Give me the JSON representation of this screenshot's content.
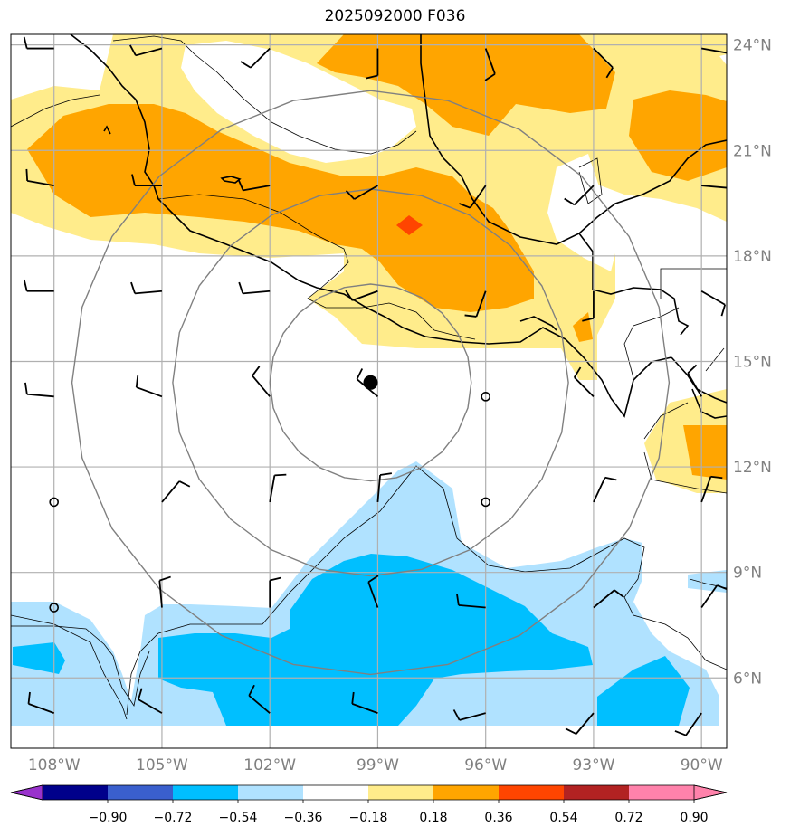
{
  "title": "2025092000 F036",
  "map": {
    "lon_range": [
      -109.2,
      -89.3
    ],
    "lat_range": [
      4.0,
      24.3
    ],
    "lat_ticks": [
      {
        "value": 24,
        "label": "24°N"
      },
      {
        "value": 21,
        "label": "21°N"
      },
      {
        "value": 18,
        "label": "18°N"
      },
      {
        "value": 15,
        "label": "15°N"
      },
      {
        "value": 12,
        "label": "12°N"
      },
      {
        "value": 9,
        "label": "9°N"
      },
      {
        "value": 6,
        "label": "6°N"
      }
    ],
    "lon_ticks": [
      {
        "value": -108,
        "label": "108°W"
      },
      {
        "value": -105,
        "label": "105°W"
      },
      {
        "value": -102,
        "label": "102°W"
      },
      {
        "value": -99,
        "label": "99°W"
      },
      {
        "value": -96,
        "label": "96°W"
      },
      {
        "value": -93,
        "label": "93°W"
      },
      {
        "value": -90,
        "label": "90°W"
      }
    ],
    "storm_center": {
      "lon": -99.2,
      "lat": 14.4
    },
    "range_rings_deg": [
      2.8,
      5.5,
      8.3
    ]
  },
  "colorbar": {
    "colors": [
      "#9932cc",
      "#00008b",
      "#3a5fcd",
      "#00bfff",
      "#b0e2ff",
      "#ffffff",
      "#ffec8b",
      "#ffa500",
      "#ff4500",
      "#b22222",
      "#ff82ab",
      "#ff82ab"
    ],
    "labels": [
      "−0.90",
      "−0.72",
      "−0.54",
      "−0.36",
      "−0.18",
      "0.18",
      "0.36",
      "0.54",
      "0.72",
      "0.90"
    ]
  },
  "barbs": [
    {
      "lon": -108,
      "lat": 23.9,
      "type": "barb",
      "dir": 270,
      "flags": 1
    },
    {
      "lon": -105,
      "lat": 23.9,
      "type": "barb",
      "dir": 255,
      "flags": 1
    },
    {
      "lon": -102,
      "lat": 23.9,
      "type": "barb",
      "dir": 225,
      "flags": 1
    },
    {
      "lon": -99,
      "lat": 23.9,
      "type": "barb",
      "dir": 180,
      "flags": 1
    },
    {
      "lon": -96,
      "lat": 23.9,
      "type": "barb",
      "dir": 160,
      "flags": 1
    },
    {
      "lon": -93,
      "lat": 23.9,
      "type": "barb",
      "dir": 135,
      "flags": 1
    },
    {
      "lon": -90,
      "lat": 23.9,
      "type": "barb",
      "dir": 100,
      "flags": 1
    },
    {
      "lon": -108,
      "lat": 20.0,
      "type": "barb",
      "dir": 280,
      "flags": 1
    },
    {
      "lon": -105,
      "lat": 20.0,
      "type": "barb",
      "dir": 270,
      "flags": 1
    },
    {
      "lon": -102,
      "lat": 20.0,
      "type": "barb",
      "dir": 260,
      "flags": 1
    },
    {
      "lon": -99,
      "lat": 20.0,
      "type": "barb",
      "dir": 240,
      "flags": 1
    },
    {
      "lon": -96,
      "lat": 20.0,
      "type": "barb",
      "dir": 215,
      "flags": 1
    },
    {
      "lon": -93,
      "lat": 20.0,
      "type": "barb",
      "dir": 225,
      "flags": 1
    },
    {
      "lon": -90,
      "lat": 20.0,
      "type": "barb",
      "dir": 95,
      "flags": 1
    },
    {
      "lon": -108,
      "lat": 17.0,
      "type": "barb",
      "dir": 270,
      "flags": 1
    },
    {
      "lon": -105,
      "lat": 17.0,
      "type": "barb",
      "dir": 265,
      "flags": 1
    },
    {
      "lon": -102,
      "lat": 17.0,
      "type": "barb",
      "dir": 265,
      "flags": 1
    },
    {
      "lon": -99,
      "lat": 17.0,
      "type": "barb",
      "dir": 250,
      "flags": 1
    },
    {
      "lon": -96,
      "lat": 17.0,
      "type": "barb",
      "dir": 200,
      "flags": 1
    },
    {
      "lon": -93,
      "lat": 17.0,
      "type": "barb",
      "dir": 180,
      "flags": 1
    },
    {
      "lon": -90,
      "lat": 17.0,
      "type": "barb",
      "dir": 120,
      "flags": 1
    },
    {
      "lon": -108,
      "lat": 14.0,
      "type": "barb",
      "dir": 275,
      "flags": 1
    },
    {
      "lon": -105,
      "lat": 14.0,
      "type": "barb",
      "dir": 290,
      "flags": 1
    },
    {
      "lon": -102,
      "lat": 14.0,
      "type": "barb",
      "dir": 320,
      "flags": 1
    },
    {
      "lon": -99,
      "lat": 14.0,
      "type": "barb",
      "dir": 310,
      "flags": 1
    },
    {
      "lon": -96,
      "lat": 14.0,
      "type": "calm"
    },
    {
      "lon": -93,
      "lat": 14.0,
      "type": "barb",
      "dir": 315,
      "flags": 1
    },
    {
      "lon": -90,
      "lat": 14.0,
      "type": "barb",
      "dir": 330,
      "flags": 1
    },
    {
      "lon": -108,
      "lat": 11.0,
      "type": "calm"
    },
    {
      "lon": -105,
      "lat": 11.0,
      "type": "barb",
      "dir": 40,
      "flags": 1
    },
    {
      "lon": -102,
      "lat": 11.0,
      "type": "barb",
      "dir": 10,
      "flags": 1
    },
    {
      "lon": -99,
      "lat": 11.0,
      "type": "barb",
      "dir": 5,
      "flags": 1
    },
    {
      "lon": -96,
      "lat": 11.0,
      "type": "calm"
    },
    {
      "lon": -93,
      "lat": 11.0,
      "type": "barb",
      "dir": 25,
      "flags": 1
    },
    {
      "lon": -90,
      "lat": 11.0,
      "type": "barb",
      "dir": 20,
      "flags": 1
    },
    {
      "lon": -108,
      "lat": 8.0,
      "type": "calm"
    },
    {
      "lon": -105,
      "lat": 8.0,
      "type": "barb",
      "dir": 355,
      "flags": 1
    },
    {
      "lon": -102,
      "lat": 8.0,
      "type": "barb",
      "dir": 0,
      "flags": 1
    },
    {
      "lon": -99,
      "lat": 8.0,
      "type": "barb",
      "dir": 340,
      "flags": 1
    },
    {
      "lon": -96,
      "lat": 8.0,
      "type": "barb",
      "dir": 275,
      "flags": 1
    },
    {
      "lon": -93,
      "lat": 8.0,
      "type": "barb",
      "dir": 50,
      "flags": 1
    },
    {
      "lon": -90,
      "lat": 8.0,
      "type": "barb",
      "dir": 35,
      "flags": 1
    },
    {
      "lon": -108,
      "lat": 5.0,
      "type": "barb",
      "dir": 290,
      "flags": 1
    },
    {
      "lon": -105,
      "lat": 5.0,
      "type": "barb",
      "dir": 300,
      "flags": 1
    },
    {
      "lon": -102,
      "lat": 5.0,
      "type": "barb",
      "dir": 310,
      "flags": 1
    },
    {
      "lon": -99,
      "lat": 5.0,
      "type": "barb",
      "dir": 290,
      "flags": 1
    },
    {
      "lon": -96,
      "lat": 5.0,
      "type": "barb",
      "dir": 255,
      "flags": 1
    },
    {
      "lon": -93,
      "lat": 5.0,
      "type": "barb",
      "dir": 220,
      "flags": 1
    },
    {
      "lon": -90,
      "lat": 5.0,
      "type": "barb",
      "dir": 215,
      "flags": 1
    }
  ]
}
